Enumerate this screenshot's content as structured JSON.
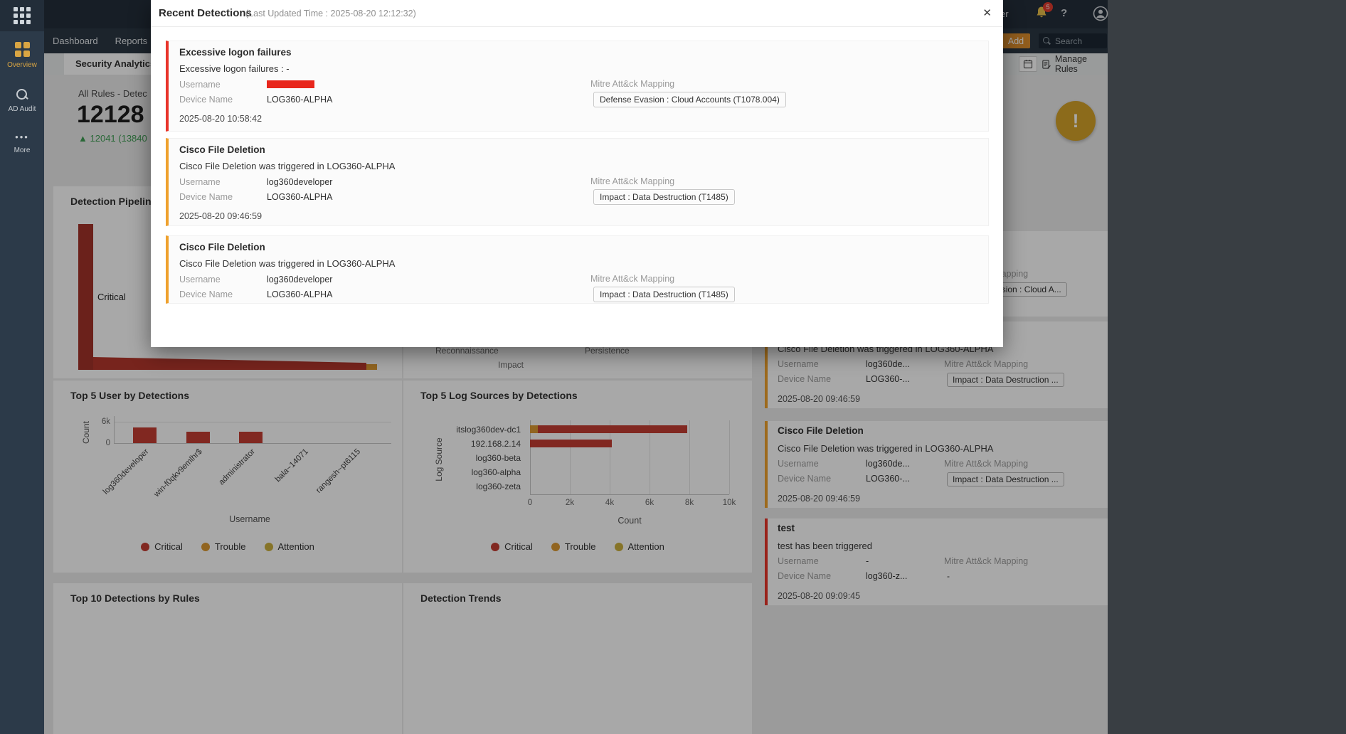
{
  "colors": {
    "critical": "#c43d33",
    "trouble": "#dd9a33",
    "attention": "#ccb13e",
    "accent_red": "#e8342a",
    "accent_orange": "#efa12d"
  },
  "sidebar": {
    "items": [
      {
        "label": "Overview"
      },
      {
        "label": "AD Audit"
      },
      {
        "label": "More"
      }
    ]
  },
  "topbar": {
    "partial_text": "er",
    "notification_count": "5",
    "help": "?"
  },
  "navbar": {
    "tabs": [
      {
        "label": "Dashboard"
      },
      {
        "label": "Reports"
      }
    ],
    "add_label": "Add",
    "search_placeholder": "Search"
  },
  "subbar": {
    "tab": "Security Analytics",
    "manage_rules": "Manage Rules"
  },
  "stats": {
    "title": "All Rules - Detec",
    "value": "12128",
    "delta_arrow": "▲",
    "delta": "12041 (13840",
    "alert": "!"
  },
  "cards": {
    "pipeline_title": "Detection Pipeline",
    "top_users_title": "Top 5 User by Detections",
    "top_sources_title": "Top 5 Log Sources by Detections",
    "top10_title": "Top 10 Detections by Rules",
    "trends_title": "Detection Trends",
    "threat_labels": [
      "Reconnaissance",
      "Persistence",
      "Impact"
    ]
  },
  "legend": [
    {
      "label": "Critical",
      "color": "#c43d33"
    },
    {
      "label": "Trouble",
      "color": "#dd9a33"
    },
    {
      "label": "Attention",
      "color": "#ccb13e"
    }
  ],
  "panel": {
    "labels": {
      "username": "Username",
      "device": "Device Name",
      "mitre": "Mitre Att&ck Mapping"
    },
    "entries": [
      {
        "mitre_value": "Defense Evasion : Cloud A...",
        "severity": ""
      },
      {
        "title": "Cisco File Deletion",
        "desc": "Cisco File Deletion was triggered in LOG360-ALPHA",
        "username": "log360de...",
        "device": "LOG360-...",
        "mitre_value": "Impact : Data Destruction ...",
        "time": "2025-08-20 09:46:59",
        "severity": "orange"
      },
      {
        "title": "Cisco File Deletion",
        "desc": "Cisco File Deletion was triggered in LOG360-ALPHA",
        "username": "log360de...",
        "device": "LOG360-...",
        "mitre_value": "Impact : Data Destruction ...",
        "time": "2025-08-20 09:46:59",
        "severity": "orange"
      },
      {
        "title": "test",
        "desc": "test has been triggered",
        "username": "-",
        "device": "log360-z...",
        "mitre_value": "-",
        "time": "2025-08-20 09:09:45",
        "severity": "red"
      }
    ]
  },
  "modal": {
    "title": "Recent Detections",
    "subtitle": "(Last Updated Time : 2025-08-20 12:12:32)",
    "close": "✕",
    "labels": {
      "username": "Username",
      "device": "Device Name",
      "mitre": "Mitre Att&ck Mapping"
    },
    "cards": [
      {
        "title": "Excessive logon failures",
        "desc": "Excessive logon failures : -",
        "username_redacted": true,
        "device": "LOG360-ALPHA",
        "mitre_value": "Defense Evasion : Cloud Accounts (T1078.004)",
        "time": "2025-08-20 10:58:42",
        "severity": "red"
      },
      {
        "title": "Cisco File Deletion",
        "desc": "Cisco File Deletion was triggered in LOG360-ALPHA",
        "username": "log360developer",
        "device": "LOG360-ALPHA",
        "mitre_value": "Impact : Data Destruction (T1485)",
        "time": "2025-08-20 09:46:59",
        "severity": "orange"
      },
      {
        "title": "Cisco File Deletion",
        "desc": "Cisco File Deletion was triggered in LOG360-ALPHA",
        "username": "log360developer",
        "device": "LOG360-ALPHA",
        "mitre_value": "Impact : Data Destruction (T1485)",
        "severity": "orange"
      }
    ]
  },
  "chart_data": [
    {
      "id": "detection_pipeline",
      "type": "funnel",
      "title": "Detection Pipeline",
      "stages": [
        {
          "label": "Critical"
        }
      ],
      "note": "First stage (Critical) dominates; remaining stages taper to a thin strip ending in a small orange segment."
    },
    {
      "id": "top5_users",
      "type": "bar",
      "title": "Top 5 User by Detections",
      "categories": [
        "log360developer",
        "win-f0qkv9emlhr$",
        "administrator",
        "bala~14071",
        "rangesh~pt6115"
      ],
      "series": [
        {
          "name": "Critical",
          "color": "#c43d33",
          "values": [
            4400,
            3200,
            3200,
            0,
            0
          ]
        },
        {
          "name": "Trouble",
          "color": "#dd9a33",
          "values": [
            0,
            0,
            0,
            0,
            0
          ]
        },
        {
          "name": "Attention",
          "color": "#ccb13e",
          "values": [
            0,
            0,
            0,
            0,
            0
          ]
        }
      ],
      "xlabel": "Username",
      "ylabel": "Count",
      "ylim": [
        0,
        6000
      ],
      "yticks": [
        "6k",
        "0"
      ],
      "legend": [
        "Critical",
        "Trouble",
        "Attention"
      ],
      "legend_position": "bottom"
    },
    {
      "id": "top5_sources",
      "type": "bar-horizontal",
      "title": "Top 5 Log Sources by Detections",
      "categories": [
        "itslog360dev-dc1",
        "192.168.2.14",
        "log360-beta",
        "log360-alpha",
        "log360-zeta"
      ],
      "series": [
        {
          "name": "Trouble",
          "color": "#dd9a33",
          "values": [
            400,
            0,
            0,
            0,
            0
          ]
        },
        {
          "name": "Critical",
          "color": "#c43d33",
          "values": [
            7500,
            4100,
            0,
            0,
            0
          ]
        }
      ],
      "xlabel": "Count",
      "ylabel": "Log Source",
      "xlim": [
        0,
        10000
      ],
      "xticks": [
        "0",
        "2k",
        "4k",
        "6k",
        "8k",
        "10k"
      ],
      "legend": [
        "Critical",
        "Trouble",
        "Attention"
      ],
      "legend_position": "bottom"
    }
  ]
}
